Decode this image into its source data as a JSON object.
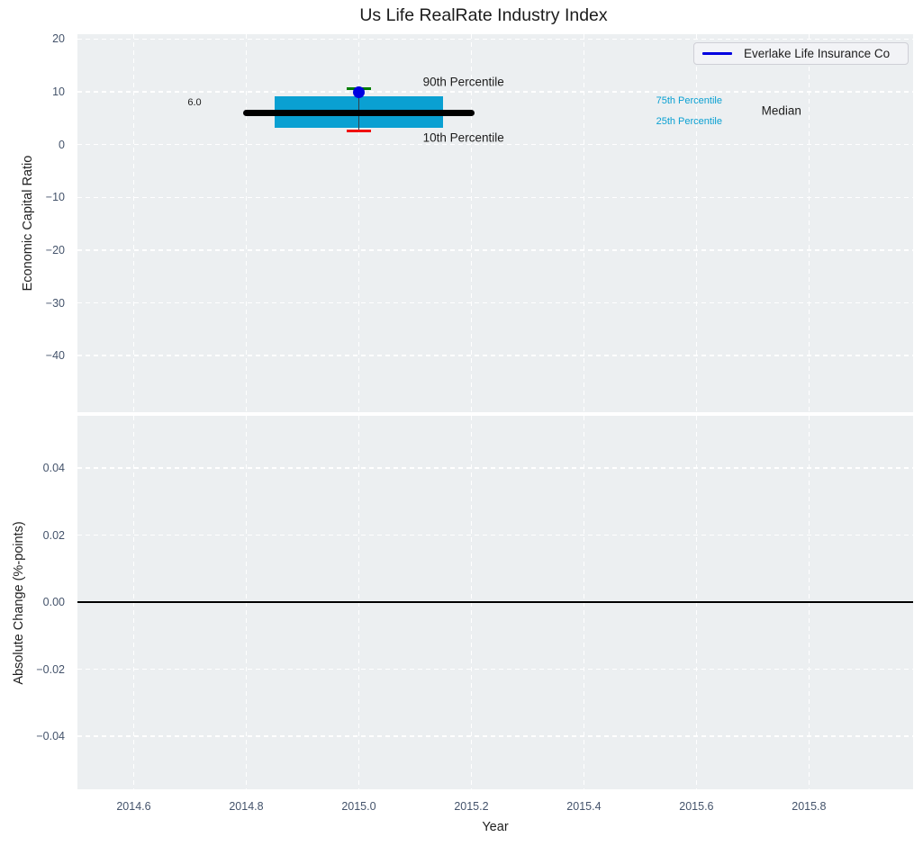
{
  "colors": {
    "plot_bg": "#eceff1",
    "grid": "#ffffff",
    "box_fill": "#0aa0d2",
    "percentile_text": "#0aa0d2",
    "median_line": "#000000",
    "whisker": "#32404a",
    "cap_90": "#007d00",
    "cap_10": "#f01010",
    "company_dot": "#0000e0",
    "legend_line": "#0000e0",
    "tick_label": "#44536b",
    "text": "#1c1c1c",
    "zero_line": "#000000"
  },
  "chart_data": [
    {
      "type": "boxplot",
      "panel": "top",
      "title": "Us Life RealRate Industry Index",
      "ylabel": "Economic Capital Ratio",
      "xlim": [
        2014.5,
        2015.985
      ],
      "ylim": [
        -50.7,
        20.9
      ],
      "grid": true,
      "legend": [
        "Everlake Life Insurance Co"
      ],
      "legend_position": "upper right",
      "xticks": [
        2014.6,
        2014.8,
        2015.0,
        2015.2,
        2015.4,
        2015.6,
        2015.8
      ],
      "show_xtick_labels": false,
      "yticks": [
        {
          "v": 20,
          "label": "20"
        },
        {
          "v": 10,
          "label": "10"
        },
        {
          "v": 0,
          "label": "0"
        },
        {
          "v": -10,
          "label": "−10"
        },
        {
          "v": -20,
          "label": "−20"
        },
        {
          "v": -30,
          "label": "−30"
        },
        {
          "v": -40,
          "label": "−40"
        }
      ],
      "box": {
        "x": 2015.0,
        "box_left": 2014.85,
        "box_right": 2015.15,
        "p90": 10.6,
        "p75": 9.2,
        "median": 6.0,
        "p25": 3.2,
        "p10": 2.5,
        "company_value": 9.9,
        "median_line_left": 2014.795,
        "median_line_right": 2015.205,
        "cap_half_width": 0.021
      },
      "annotations": [
        {
          "text": "6.0",
          "x": 2014.708,
          "y": 7.9,
          "color": "#1c1c1c",
          "size": 11
        },
        {
          "text": "90th Percentile",
          "x": 2015.186,
          "y": 11.9,
          "color": "#1c1c1c",
          "size": 13.5
        },
        {
          "text": "10th Percentile",
          "x": 2015.186,
          "y": 1.3,
          "color": "#1c1c1c",
          "size": 13.5
        },
        {
          "text": "75th Percentile",
          "x": 2015.587,
          "y": 8.3,
          "color": "#0aa0d2",
          "size": 11
        },
        {
          "text": "25th Percentile",
          "x": 2015.587,
          "y": 4.4,
          "color": "#0aa0d2",
          "size": 11
        },
        {
          "text": "Median",
          "x": 2015.751,
          "y": 6.4,
          "color": "#1c1c1c",
          "size": 13.5
        }
      ]
    },
    {
      "type": "line",
      "panel": "bottom",
      "ylabel": "Absolute Change (%-points)",
      "xlabel": "Year",
      "xlim": [
        2014.5,
        2015.985
      ],
      "ylim": [
        -0.0558,
        0.0556
      ],
      "grid": true,
      "zero_line": 0.0,
      "xticks": [
        2014.6,
        2014.8,
        2015.0,
        2015.2,
        2015.4,
        2015.6,
        2015.8
      ],
      "xtick_labels": [
        "2014.6",
        "2014.8",
        "2015.0",
        "2015.2",
        "2015.4",
        "2015.6",
        "2015.8"
      ],
      "show_xtick_labels": true,
      "yticks": [
        {
          "v": 0.04,
          "label": "0.04"
        },
        {
          "v": 0.02,
          "label": "0.02"
        },
        {
          "v": 0.0,
          "label": "0.00"
        },
        {
          "v": -0.02,
          "label": "−0.02"
        },
        {
          "v": -0.04,
          "label": "−0.04"
        }
      ]
    }
  ]
}
